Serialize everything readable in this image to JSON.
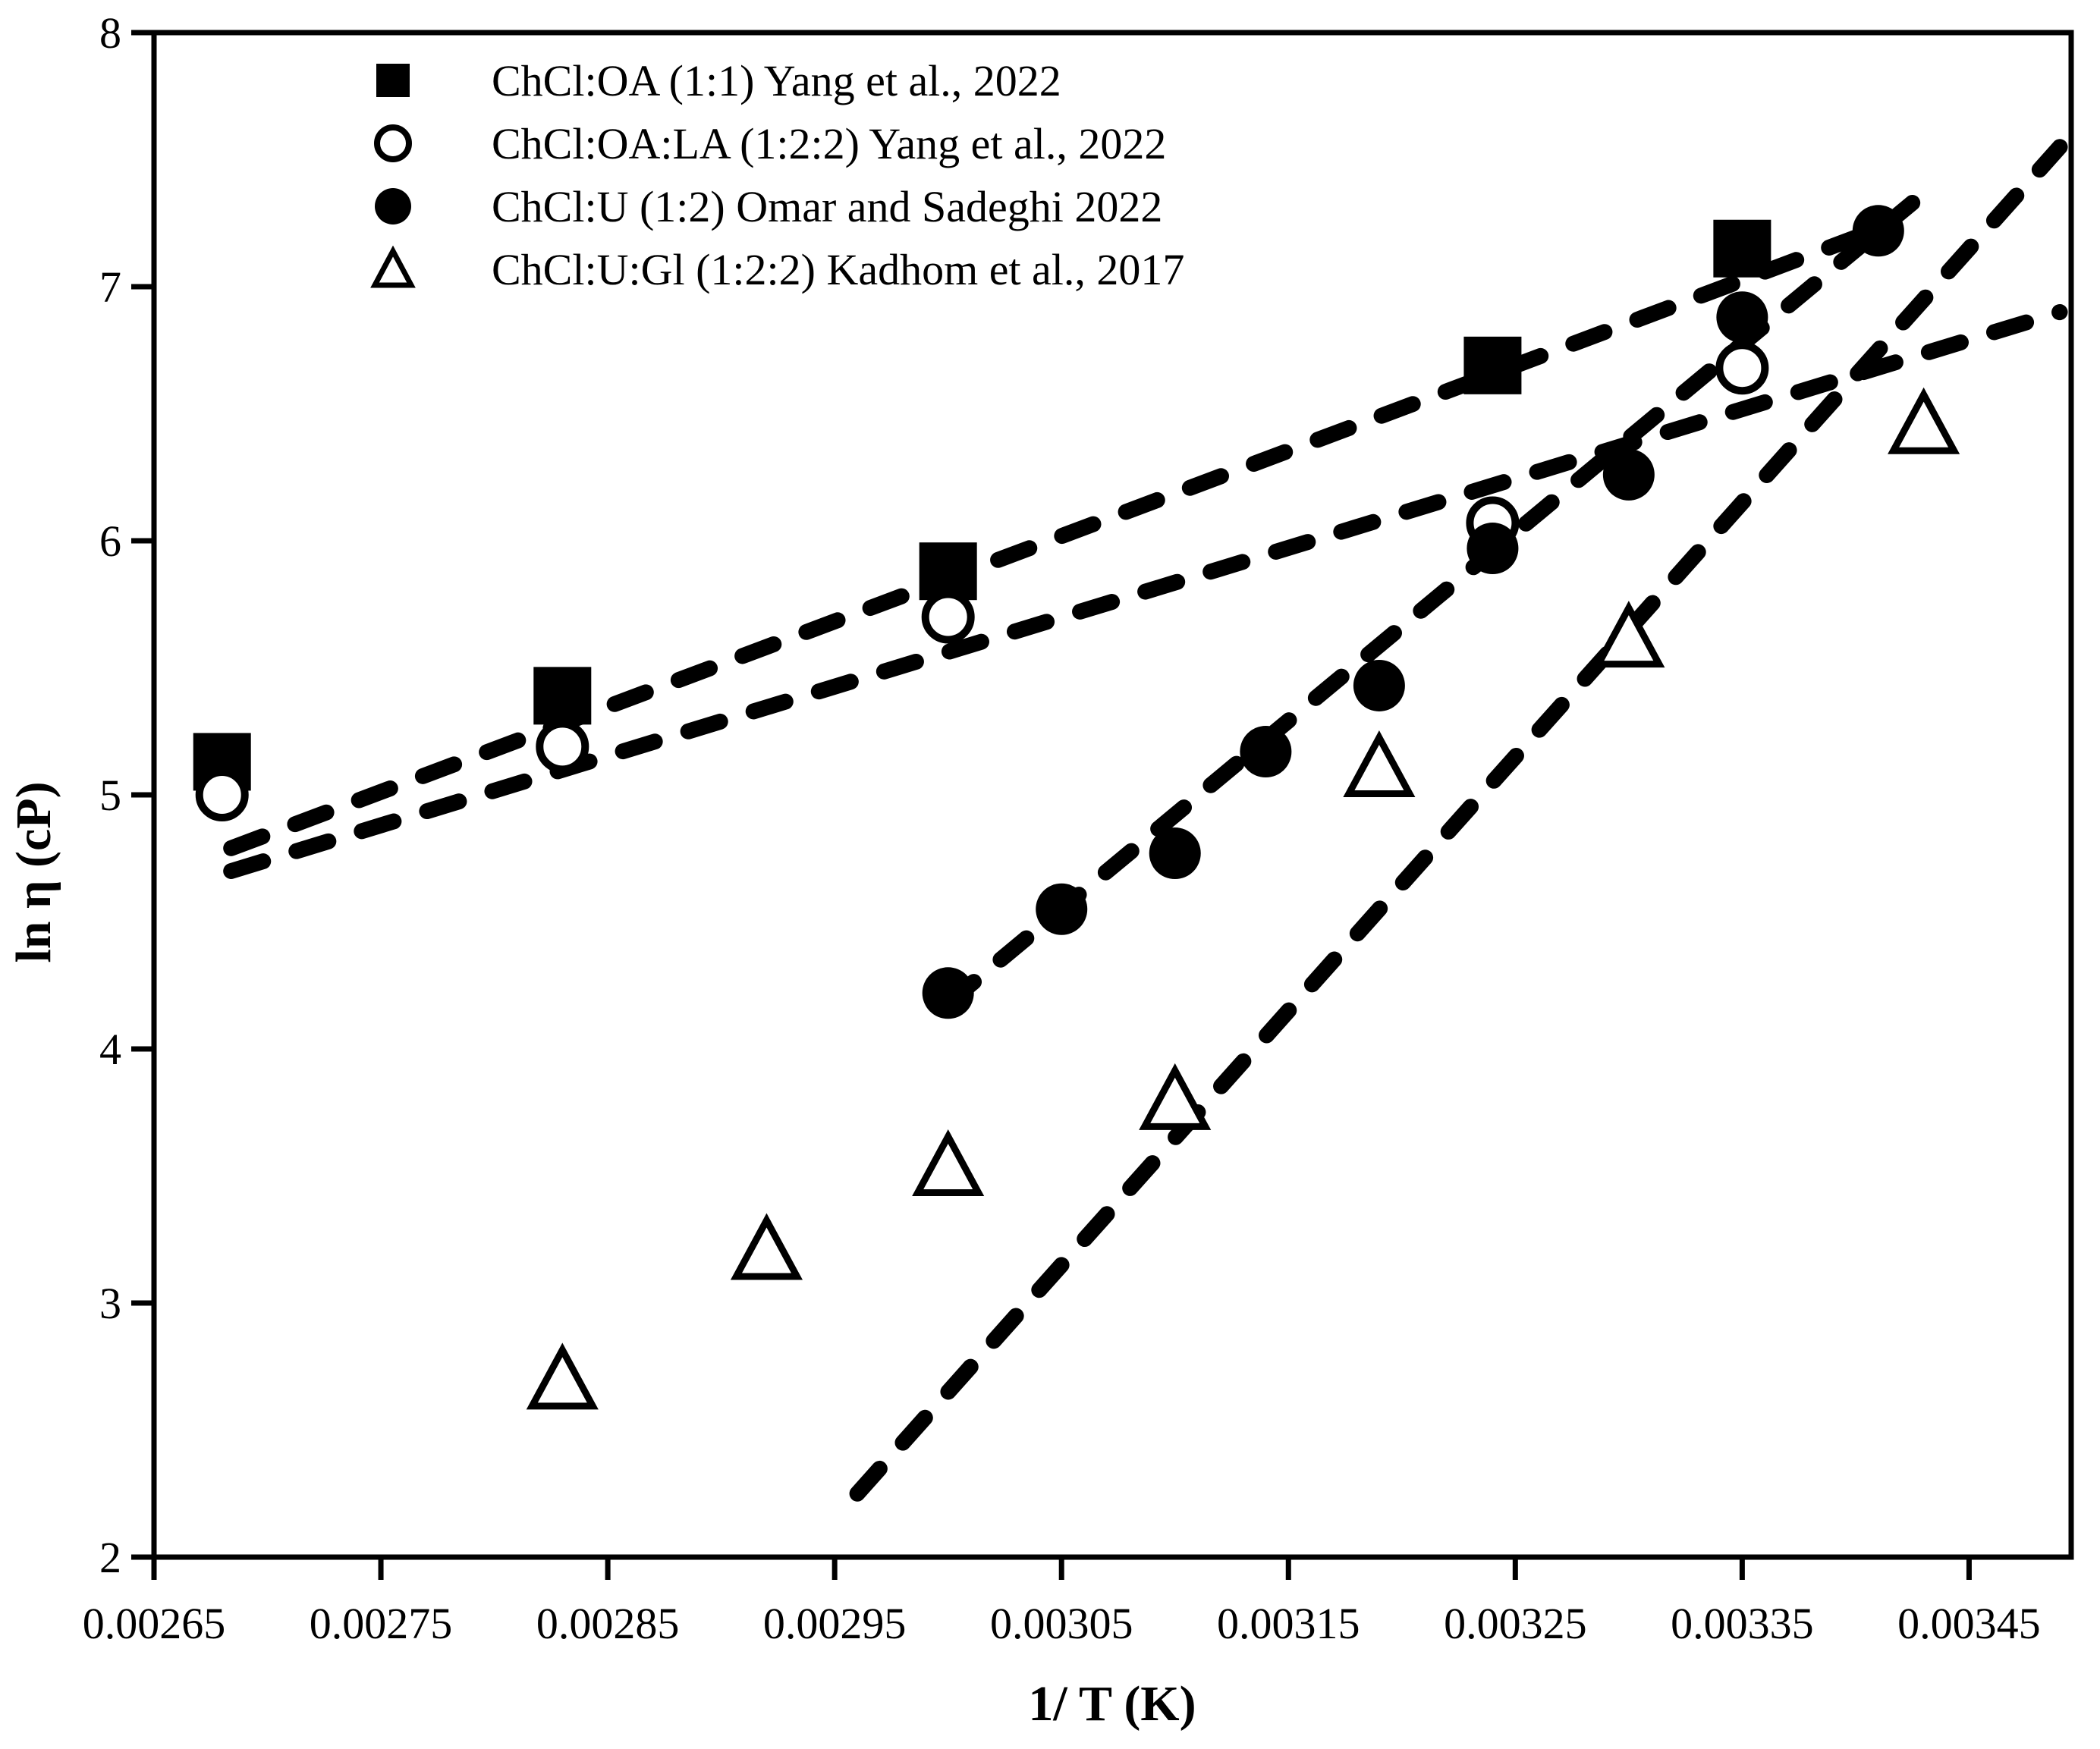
{
  "figure": {
    "background": "#ffffff",
    "ink": "#000000"
  },
  "chart_data": {
    "type": "scatter",
    "title": "",
    "xlabel": "1/ T (K)",
    "ylabel": "ln η (cP)",
    "xlim": [
      0.00265,
      0.003495
    ],
    "ylim": [
      2,
      8
    ],
    "grid": false,
    "legend_position": "top-left-inside",
    "x_ticks": [
      0.00265,
      0.00275,
      0.00285,
      0.00295,
      0.00305,
      0.00315,
      0.00325,
      0.00335,
      0.00345
    ],
    "x_tick_labels": [
      "0.00265",
      "0.00275",
      "0.00285",
      "0.00295",
      "0.00305",
      "0.00315",
      "0.00325",
      "0.00335",
      "0.00345"
    ],
    "y_ticks": [
      2,
      3,
      4,
      5,
      6,
      7,
      8
    ],
    "y_tick_labels": [
      "2",
      "3",
      "4",
      "5",
      "6",
      "7",
      "8"
    ],
    "series": [
      {
        "label": "ChCl:OA (1:1) Yang et al., 2022",
        "marker": "filled-square",
        "line_style": "dashed",
        "points": [
          [
            0.00268,
            5.13
          ],
          [
            0.00283,
            5.39
          ],
          [
            0.003,
            5.88
          ],
          [
            0.00324,
            6.69
          ],
          [
            0.00335,
            7.15
          ]
        ],
        "trend_line": {
          "start": [
            0.002684,
            4.79
          ],
          "end": [
            0.003405,
            7.21
          ]
        }
      },
      {
        "label": "ChCl:OA:LA (1:2:2) Yang et al., 2022",
        "marker": "open-circle",
        "line_style": "dashed",
        "points": [
          [
            0.00268,
            5.0
          ],
          [
            0.00283,
            5.19
          ],
          [
            0.003,
            5.7
          ],
          [
            0.00324,
            6.07
          ],
          [
            0.00335,
            6.68
          ]
        ],
        "trend_line": {
          "start": [
            0.002684,
            4.7
          ],
          "end": [
            0.00349,
            6.9
          ]
        }
      },
      {
        "label": "ChCl:U (1:2) Omar and Sadeghi 2022",
        "marker": "filled-circle",
        "line_style": "dashed",
        "points": [
          [
            0.003,
            4.22
          ],
          [
            0.00305,
            4.55
          ],
          [
            0.0031,
            4.77
          ],
          [
            0.00314,
            5.17
          ],
          [
            0.00319,
            5.43
          ],
          [
            0.00324,
            5.97
          ],
          [
            0.0033,
            6.26
          ],
          [
            0.00335,
            6.88
          ],
          [
            0.00341,
            7.22
          ]
        ],
        "trend_line": {
          "start": [
            0.003,
            4.18
          ],
          "end": [
            0.003425,
            7.33
          ]
        }
      },
      {
        "label": "ChCl:U:Gl (1:2:2) Kadhom et al., 2017",
        "marker": "open-triangle",
        "line_style": "dashed",
        "points": [
          [
            0.00283,
            2.69
          ],
          [
            0.00292,
            3.2
          ],
          [
            0.003,
            3.53
          ],
          [
            0.0031,
            3.79
          ],
          [
            0.00319,
            5.1
          ],
          [
            0.0033,
            5.61
          ],
          [
            0.00343,
            6.45
          ]
        ],
        "trend_line": {
          "start": [
            0.00296,
            2.25
          ],
          "end": [
            0.00349,
            7.55
          ]
        }
      }
    ]
  }
}
